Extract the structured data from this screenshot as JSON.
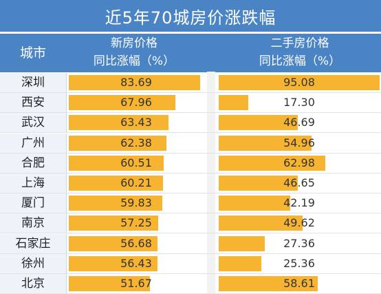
{
  "chart_data": {
    "type": "table",
    "title": "近5年70城房价涨跌幅",
    "columns": {
      "city": "城市",
      "new_house": [
        "新房价格",
        "同比涨幅（%）"
      ],
      "second_hand": [
        "二手房价格",
        "同比涨幅（%）"
      ]
    },
    "categories": [
      "深圳",
      "西安",
      "武汉",
      "广州",
      "合肥",
      "上海",
      "厦门",
      "南京",
      "石家庄",
      "徐州",
      "北京"
    ],
    "series": [
      {
        "values": [
          83.69,
          67.96,
          63.43,
          62.38,
          60.51,
          60.21,
          59.83,
          57.25,
          56.68,
          56.43,
          51.67
        ]
      },
      {
        "values": [
          95.08,
          17.3,
          46.69,
          54.96,
          62.98,
          46.65,
          42.19,
          49.62,
          27.36,
          25.36,
          58.61
        ]
      }
    ],
    "labels": [
      [
        "83.69",
        "67.96",
        "63.43",
        "62.38",
        "60.51",
        "60.21",
        "59.83",
        "57.25",
        "56.68",
        "56.43",
        "51.67"
      ],
      [
        "95.08",
        "17.30",
        "46.69",
        "54.96",
        "62.98",
        "46.65",
        "42.19",
        "49.62",
        "27.36",
        "25.36",
        "58.61"
      ]
    ],
    "colors": {
      "header": "#4a84c4",
      "bar": "#f6b431"
    }
  }
}
